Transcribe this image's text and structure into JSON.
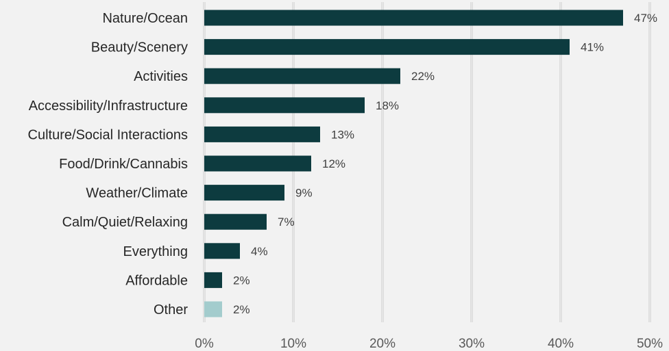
{
  "chart_data": {
    "type": "bar",
    "orientation": "horizontal",
    "title": "",
    "xlabel": "",
    "ylabel": "",
    "categories": [
      "Nature/Ocean",
      "Beauty/Scenery",
      "Activities",
      "Accessibility/Infrastructure",
      "Culture/Social Interactions",
      "Food/Drink/Cannabis",
      "Weather/Climate",
      "Calm/Quiet/Relaxing",
      "Everything",
      "Affordable",
      "Other"
    ],
    "values": [
      47,
      41,
      22,
      18,
      13,
      12,
      9,
      7,
      4,
      2,
      2
    ],
    "data_labels": [
      "47%",
      "41%",
      "22%",
      "18%",
      "13%",
      "12%",
      "9%",
      "7%",
      "4%",
      "2%",
      "2%"
    ],
    "bar_colors": [
      "#0d3b3f",
      "#0d3b3f",
      "#0d3b3f",
      "#0d3b3f",
      "#0d3b3f",
      "#0d3b3f",
      "#0d3b3f",
      "#0d3b3f",
      "#0d3b3f",
      "#0d3b3f",
      "#a3cccd"
    ],
    "xlim": [
      0,
      50
    ],
    "xticks": [
      0,
      10,
      20,
      30,
      40,
      50
    ],
    "xtick_labels": [
      "0%",
      "10%",
      "20%",
      "30%",
      "40%",
      "50%"
    ],
    "grid": true,
    "legend": "none"
  }
}
